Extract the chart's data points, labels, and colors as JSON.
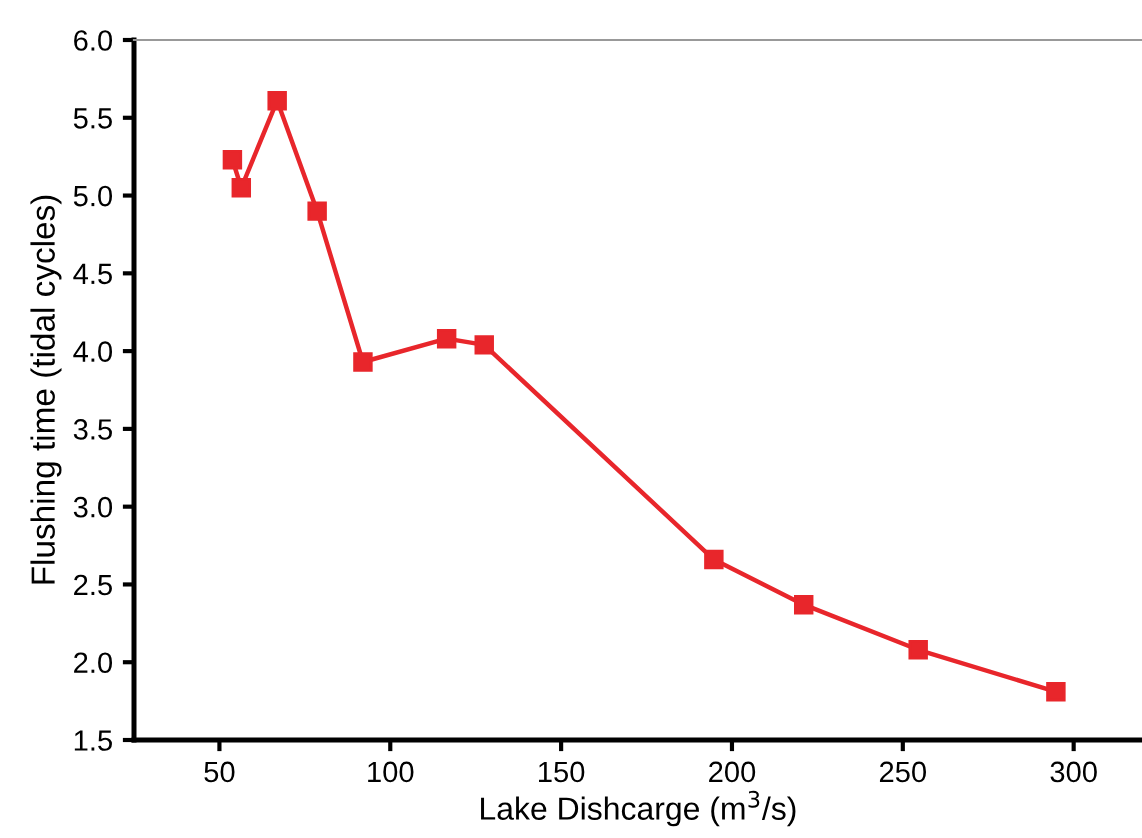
{
  "chart_data": {
    "type": "line",
    "xlabel": "Lake Dishcarge (m$^{3}$/s)",
    "ylabel": "Flushing time (tidal cycles)",
    "x": [
      53.8,
      56.4,
      66.9,
      78.6,
      92,
      116.5,
      127.5,
      194.7,
      221,
      254.5,
      294.8
    ],
    "series": [
      {
        "color": "#e8262b",
        "values": [
          5.23,
          5.05,
          5.61,
          4.9,
          3.93,
          4.08,
          4.04,
          2.66,
          2.37,
          2.08,
          1.81
        ]
      }
    ],
    "marker": "square",
    "line_style": "solid",
    "grid": false,
    "xlim": [
      25,
      320
    ],
    "xticks": [
      50,
      100,
      150,
      200,
      250,
      300
    ],
    "ylim": [
      1.5,
      6.0
    ],
    "yticks": [
      {
        "value": 1.5,
        "label": "1.5"
      },
      {
        "value": 2.0,
        "label": "2.0"
      },
      {
        "value": 2.5,
        "label": "2.5"
      },
      {
        "value": 3.0,
        "label": "3.0"
      },
      {
        "value": 3.5,
        "label": "3.5"
      },
      {
        "value": 4.0,
        "label": "4.0"
      },
      {
        "value": 4.5,
        "label": "4.5"
      },
      {
        "value": 5.0,
        "label": "5.0"
      },
      {
        "value": 5.5,
        "label": "5.5"
      },
      {
        "value": 6.0,
        "label": "6.0"
      }
    ]
  }
}
